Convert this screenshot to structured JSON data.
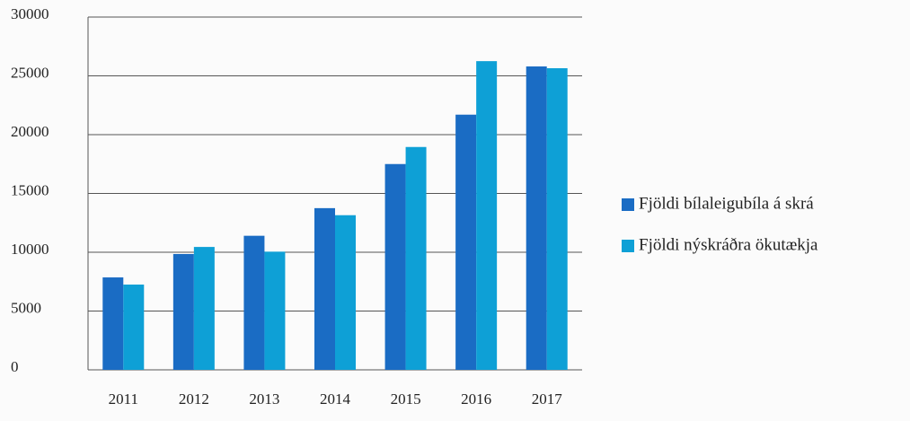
{
  "chart_data": {
    "type": "bar",
    "categories": [
      "2011",
      "2012",
      "2013",
      "2014",
      "2015",
      "2016",
      "2017"
    ],
    "series": [
      {
        "name": "Fjöldi bílaleigubíla á skrá",
        "color": "#1a6cc4",
        "values": [
          7860,
          9850,
          11400,
          13750,
          17500,
          21700,
          25800
        ]
      },
      {
        "name": "Fjöldi nýskráðra ökutækja",
        "color": "#0ea0d6",
        "values": [
          7250,
          10450,
          10050,
          13150,
          18950,
          26250,
          25650
        ]
      }
    ],
    "ylim": [
      0,
      30000
    ],
    "yticks": [
      0,
      5000,
      10000,
      15000,
      20000,
      25000,
      30000
    ],
    "grid": true,
    "legend": "right"
  }
}
